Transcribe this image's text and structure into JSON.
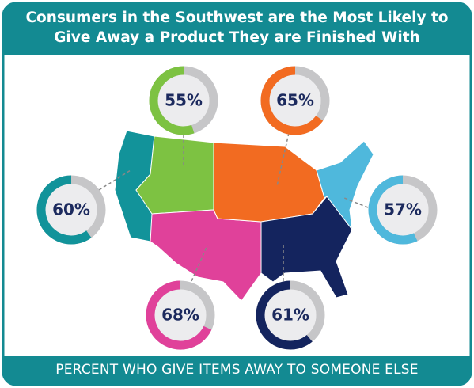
{
  "chart_data": {
    "type": "donut",
    "title": "Consumers in the Southwest are the Most Likely to Give Away a Product They are Finished With",
    "caption": "PERCENT WHO GIVE ITEMS AWAY TO SOMEONE ELSE",
    "values": [
      55,
      65,
      60,
      57,
      68,
      61
    ],
    "value_labels": [
      "55%",
      "65%",
      "60%",
      "57%",
      "68%",
      "61%"
    ],
    "colors": [
      "#7dc242",
      "#f26b21",
      "#12939a",
      "#4fb8dc",
      "#e0419a",
      "#14245e"
    ]
  }
}
